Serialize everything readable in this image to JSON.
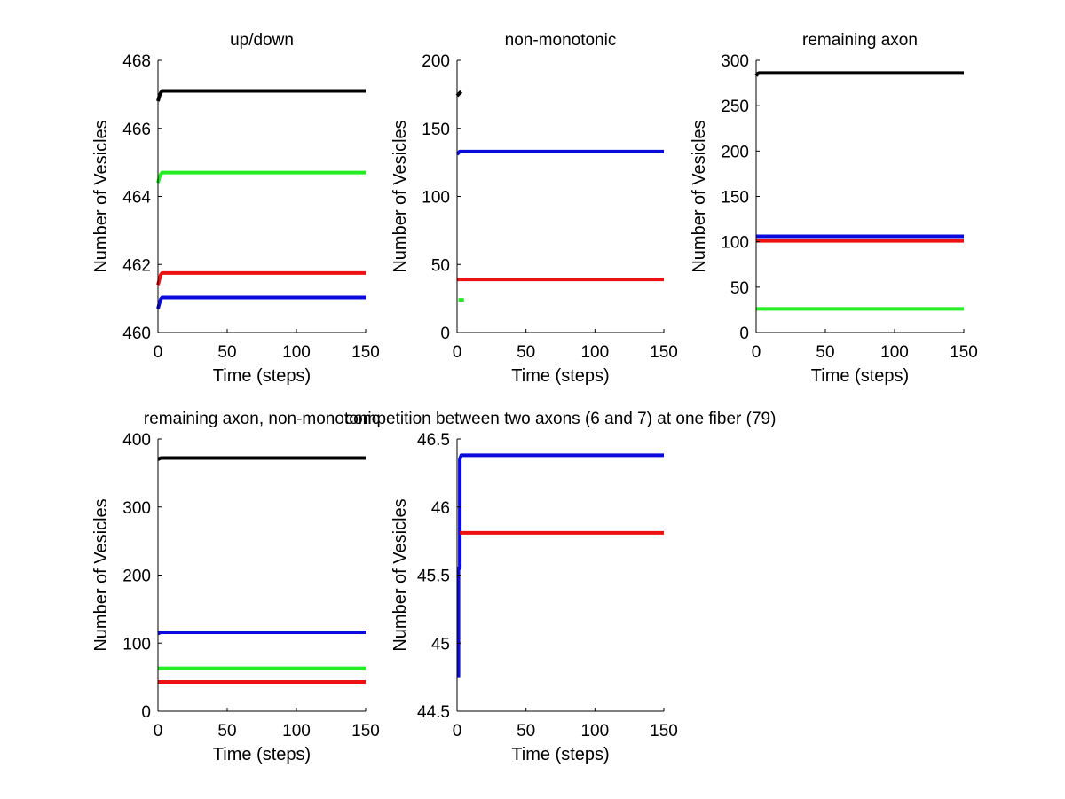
{
  "figure": {
    "background": "#ffffff"
  },
  "colors": {
    "black": "#000000",
    "green": "#22ee22",
    "red": "#ee1111",
    "blue": "#0b0bdd"
  },
  "chart_data": [
    {
      "type": "line",
      "title": "up/down",
      "xlabel": "Time (steps)",
      "ylabel": "Number of Vesicles",
      "xlim": [
        0,
        150
      ],
      "ylim": [
        460,
        468
      ],
      "xticks": [
        0,
        50,
        100,
        150
      ],
      "xtick_labels": [
        "0",
        "50",
        "100",
        "150"
      ],
      "yticks": [
        460,
        462,
        464,
        466,
        468
      ],
      "ytick_labels": [
        "460",
        "462",
        "464",
        "466",
        "468"
      ],
      "series": [
        {
          "name": "black",
          "color": "#000000",
          "x": [
            0,
            1,
            2,
            3,
            150
          ],
          "y": [
            466.8,
            466.95,
            467.05,
            467.1,
            467.1
          ]
        },
        {
          "name": "green",
          "color": "#22ee22",
          "x": [
            0,
            1,
            2,
            3,
            150
          ],
          "y": [
            464.4,
            464.55,
            464.65,
            464.7,
            464.7
          ]
        },
        {
          "name": "red",
          "color": "#ee1111",
          "x": [
            0,
            1,
            2,
            3,
            150
          ],
          "y": [
            461.4,
            461.55,
            461.7,
            461.75,
            461.75
          ]
        },
        {
          "name": "blue",
          "color": "#0b0bdd",
          "x": [
            0,
            1,
            2,
            3,
            150
          ],
          "y": [
            460.7,
            460.85,
            460.98,
            461.03,
            461.03
          ]
        }
      ]
    },
    {
      "type": "line",
      "title": "non-monotonic",
      "xlabel": "Time (steps)",
      "ylabel": "Number of Vesicles",
      "xlim": [
        0,
        150
      ],
      "ylim": [
        0,
        200
      ],
      "xticks": [
        0,
        50,
        100,
        150
      ],
      "xtick_labels": [
        "0",
        "50",
        "100",
        "150"
      ],
      "yticks": [
        0,
        50,
        100,
        150,
        200
      ],
      "ytick_labels": [
        "0",
        "50",
        "100",
        "150",
        "200"
      ],
      "series": [
        {
          "name": "black",
          "color": "#000000",
          "x": [
            0,
            1,
            2,
            3
          ],
          "y": [
            174,
            175,
            176,
            177
          ]
        },
        {
          "name": "green",
          "color": "#22ee22",
          "x": [
            1,
            5
          ],
          "y": [
            24,
            24
          ]
        },
        {
          "name": "red",
          "color": "#ee1111",
          "x": [
            0,
            150
          ],
          "y": [
            39,
            39
          ]
        },
        {
          "name": "blue",
          "color": "#0b0bdd",
          "x": [
            0,
            1,
            2,
            150
          ],
          "y": [
            131,
            132,
            133,
            133
          ]
        }
      ]
    },
    {
      "type": "line",
      "title": "remaining axon",
      "xlabel": "Time (steps)",
      "ylabel": "Number of Vesicles",
      "xlim": [
        0,
        150
      ],
      "ylim": [
        0,
        300
      ],
      "xticks": [
        0,
        50,
        100,
        150
      ],
      "xtick_labels": [
        "0",
        "50",
        "100",
        "150"
      ],
      "yticks": [
        0,
        50,
        100,
        150,
        200,
        250,
        300
      ],
      "ytick_labels": [
        "0",
        "50",
        "100",
        "150",
        "200",
        "250",
        "300"
      ],
      "series": [
        {
          "name": "black",
          "color": "#000000",
          "x": [
            0,
            1,
            2,
            150
          ],
          "y": [
            283,
            285,
            286,
            286
          ]
        },
        {
          "name": "blue",
          "color": "#0b0bdd",
          "x": [
            0,
            150
          ],
          "y": [
            106,
            106
          ]
        },
        {
          "name": "red",
          "color": "#ee1111",
          "x": [
            0,
            150
          ],
          "y": [
            101,
            101
          ]
        },
        {
          "name": "green",
          "color": "#22ee22",
          "x": [
            0,
            150
          ],
          "y": [
            26,
            26
          ]
        }
      ]
    },
    {
      "type": "line",
      "title": "remaining axon, non-monotonic",
      "xlabel": "Time (steps)",
      "ylabel": "Number of Vesicles",
      "xlim": [
        0,
        150
      ],
      "ylim": [
        0,
        400
      ],
      "xticks": [
        0,
        50,
        100,
        150
      ],
      "xtick_labels": [
        "0",
        "50",
        "100",
        "150"
      ],
      "yticks": [
        0,
        100,
        200,
        300,
        400
      ],
      "ytick_labels": [
        "0",
        "100",
        "200",
        "300",
        "400"
      ],
      "series": [
        {
          "name": "black",
          "color": "#000000",
          "x": [
            0,
            1,
            2,
            150
          ],
          "y": [
            370,
            371,
            372,
            372
          ]
        },
        {
          "name": "blue",
          "color": "#0b0bdd",
          "x": [
            0,
            1,
            2,
            150
          ],
          "y": [
            114,
            115,
            116,
            116
          ]
        },
        {
          "name": "green",
          "color": "#22ee22",
          "x": [
            0,
            150
          ],
          "y": [
            63,
            63
          ]
        },
        {
          "name": "red",
          "color": "#ee1111",
          "x": [
            0,
            150
          ],
          "y": [
            43,
            43
          ]
        }
      ]
    },
    {
      "type": "line",
      "title": "competition between two axons (6 and 7) at one fiber (79)",
      "xlabel": "Time (steps)",
      "ylabel": "Number of Vesicles",
      "xlim": [
        0,
        150
      ],
      "ylim": [
        44.5,
        46.5
      ],
      "xticks": [
        0,
        50,
        100,
        150
      ],
      "xtick_labels": [
        "0",
        "50",
        "100",
        "150"
      ],
      "yticks": [
        44.5,
        45,
        45.5,
        46,
        46.5
      ],
      "ytick_labels": [
        "44.5",
        "45",
        "45.5",
        "46",
        "46.5"
      ],
      "series": [
        {
          "name": "blue",
          "color": "#0b0bdd",
          "x": [
            1,
            1,
            2,
            2,
            3,
            150
          ],
          "y": [
            44.75,
            45.55,
            45.55,
            46.35,
            46.38,
            46.38
          ]
        },
        {
          "name": "red",
          "color": "#ee1111",
          "x": [
            2,
            150
          ],
          "y": [
            45.81,
            45.81
          ]
        }
      ]
    }
  ]
}
